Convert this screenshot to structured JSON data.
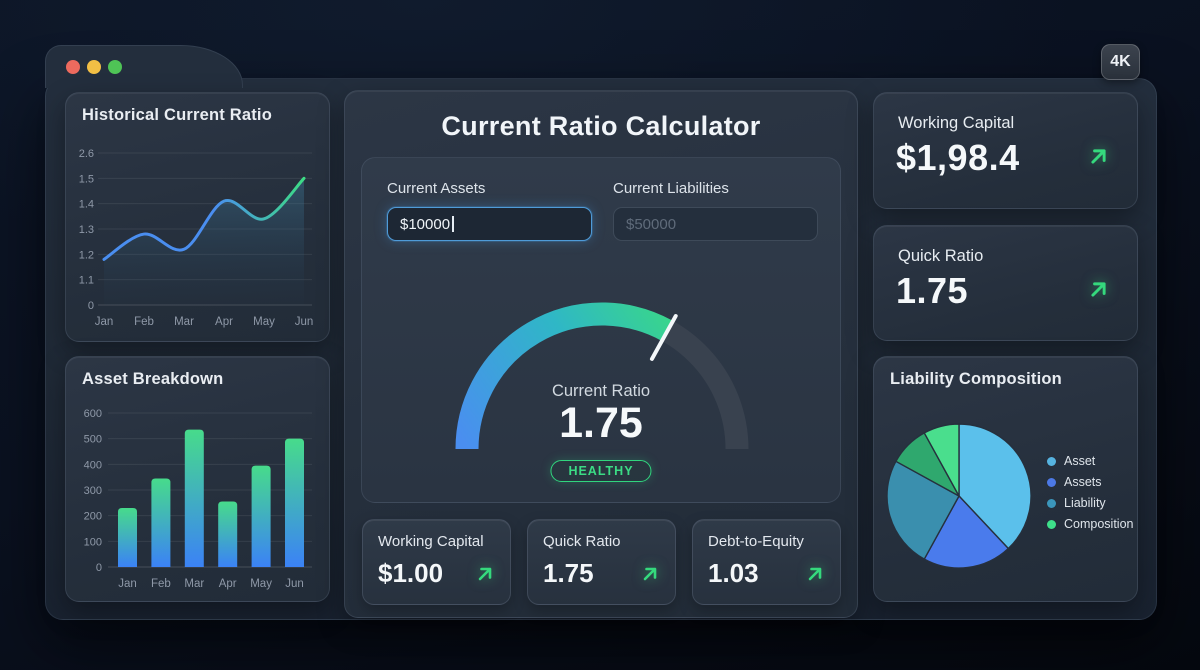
{
  "window": {
    "traffic_lights": [
      "#ed6a5e",
      "#f2bf45",
      "#4fc456"
    ],
    "resolution_badge": "4K"
  },
  "accent": {
    "green": "#35d97d",
    "blue": "#4a8ef0"
  },
  "calculator": {
    "title": "Current Ratio Calculator",
    "assets_field": {
      "label": "Current Assets",
      "value": "$10000"
    },
    "liabilities_field": {
      "label": "Current Liabilities",
      "placeholder": "$50000"
    },
    "stats": [
      {
        "label": "Working Capital",
        "value": "$1.00"
      },
      {
        "label": "Quick Ratio",
        "value": "1.75"
      },
      {
        "label": "Debt-to-Equity",
        "value": "1.03"
      }
    ]
  },
  "right_column": {
    "working_capital": {
      "title": "Working Capital",
      "value": "$1,98.4"
    },
    "quick_ratio": {
      "title": "Quick Ratio",
      "value": "1.75"
    }
  },
  "chart_data": [
    {
      "id": "historical_current_ratio",
      "type": "area",
      "title": "Historical Current Ratio",
      "x": [
        "Jan",
        "Feb",
        "Mar",
        "Apr",
        "May",
        "Jun"
      ],
      "values": [
        1.18,
        1.28,
        1.22,
        1.41,
        1.34,
        1.5
      ],
      "yticks": [
        2.6,
        1.5,
        1.4,
        1.3,
        1.2,
        1.1,
        0
      ],
      "line_colors": [
        "#4a8ef0",
        "#3ddc84"
      ],
      "fill_colors": [
        "rgba(74,158,196,0.40)",
        "rgba(40,70,100,0.03)"
      ],
      "grid": true,
      "legend": false
    },
    {
      "id": "asset_breakdown",
      "type": "bar",
      "title": "Asset Breakdown",
      "x": [
        "Jan",
        "Feb",
        "Mar",
        "Apr",
        "May",
        "Jun"
      ],
      "values": [
        230,
        345,
        535,
        255,
        395,
        500
      ],
      "yticks": [
        600,
        500,
        400,
        300,
        200,
        100,
        0
      ],
      "ylim": [
        0,
        600
      ],
      "bar_colors": [
        "#47db8b",
        "#3b82f6"
      ],
      "grid": true,
      "legend": false
    },
    {
      "id": "current_ratio_gauge",
      "type": "gauge",
      "label": "Current Ratio",
      "value": 1.75,
      "status": "HEALTHY",
      "sweep_deg": 119,
      "track_color": "#39424f",
      "fill_colors": [
        "#4a8ef0",
        "#2fb7c6",
        "#3bdc7f"
      ]
    },
    {
      "id": "liability_composition",
      "type": "pie",
      "title": "Liability Composition",
      "slices": [
        {
          "value": 38,
          "color": "#5bc0eb"
        },
        {
          "value": 20,
          "color": "#4a7bec"
        },
        {
          "value": 25,
          "color": "#3a8fae"
        },
        {
          "value": 9,
          "color": "#2fa86e"
        },
        {
          "value": 8,
          "color": "#4ade8d"
        }
      ],
      "legend": [
        {
          "label": "Asset",
          "color": "#56b3e0"
        },
        {
          "label": "Assets",
          "color": "#4c79e6"
        },
        {
          "label": "Liability",
          "color": "#3b96bb"
        },
        {
          "label": "Composition",
          "color": "#3ee08a"
        }
      ],
      "legend_position": "right"
    }
  ]
}
